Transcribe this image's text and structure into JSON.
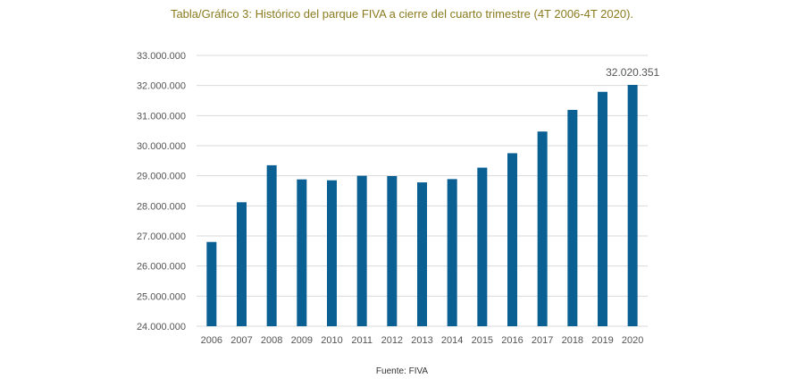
{
  "chart_data": {
    "type": "bar",
    "title": "Tabla/Gráfico 3: Histórico del parque FIVA a cierre del cuarto trimestre (4T 2006-4T 2020).",
    "source": "Fuente: FIVA",
    "xlabel": "",
    "ylabel": "",
    "categories": [
      "2006",
      "2007",
      "2008",
      "2009",
      "2010",
      "2011",
      "2012",
      "2013",
      "2014",
      "2015",
      "2016",
      "2017",
      "2018",
      "2019",
      "2020"
    ],
    "values": [
      26800000,
      28120000,
      29350000,
      28880000,
      28850000,
      29000000,
      28990000,
      28780000,
      28890000,
      29270000,
      29750000,
      30470000,
      31190000,
      31790000,
      32020351
    ],
    "ylim": [
      24000000,
      33000000
    ],
    "yticks": [
      24000000,
      25000000,
      26000000,
      27000000,
      28000000,
      29000000,
      30000000,
      31000000,
      32000000,
      33000000
    ],
    "ytick_labels": [
      "24.000.000",
      "25.000.000",
      "26.000.000",
      "27.000.000",
      "28.000.000",
      "29.000.000",
      "30.000.000",
      "31.000.000",
      "32.000.000",
      "33.000.000"
    ],
    "data_labels": [
      {
        "category": "2020",
        "text": "32.020.351"
      }
    ],
    "grid": true,
    "bar_color": "#0a5f93",
    "grid_color": "#d9d9d9",
    "title_color": "#8a7b1f"
  }
}
